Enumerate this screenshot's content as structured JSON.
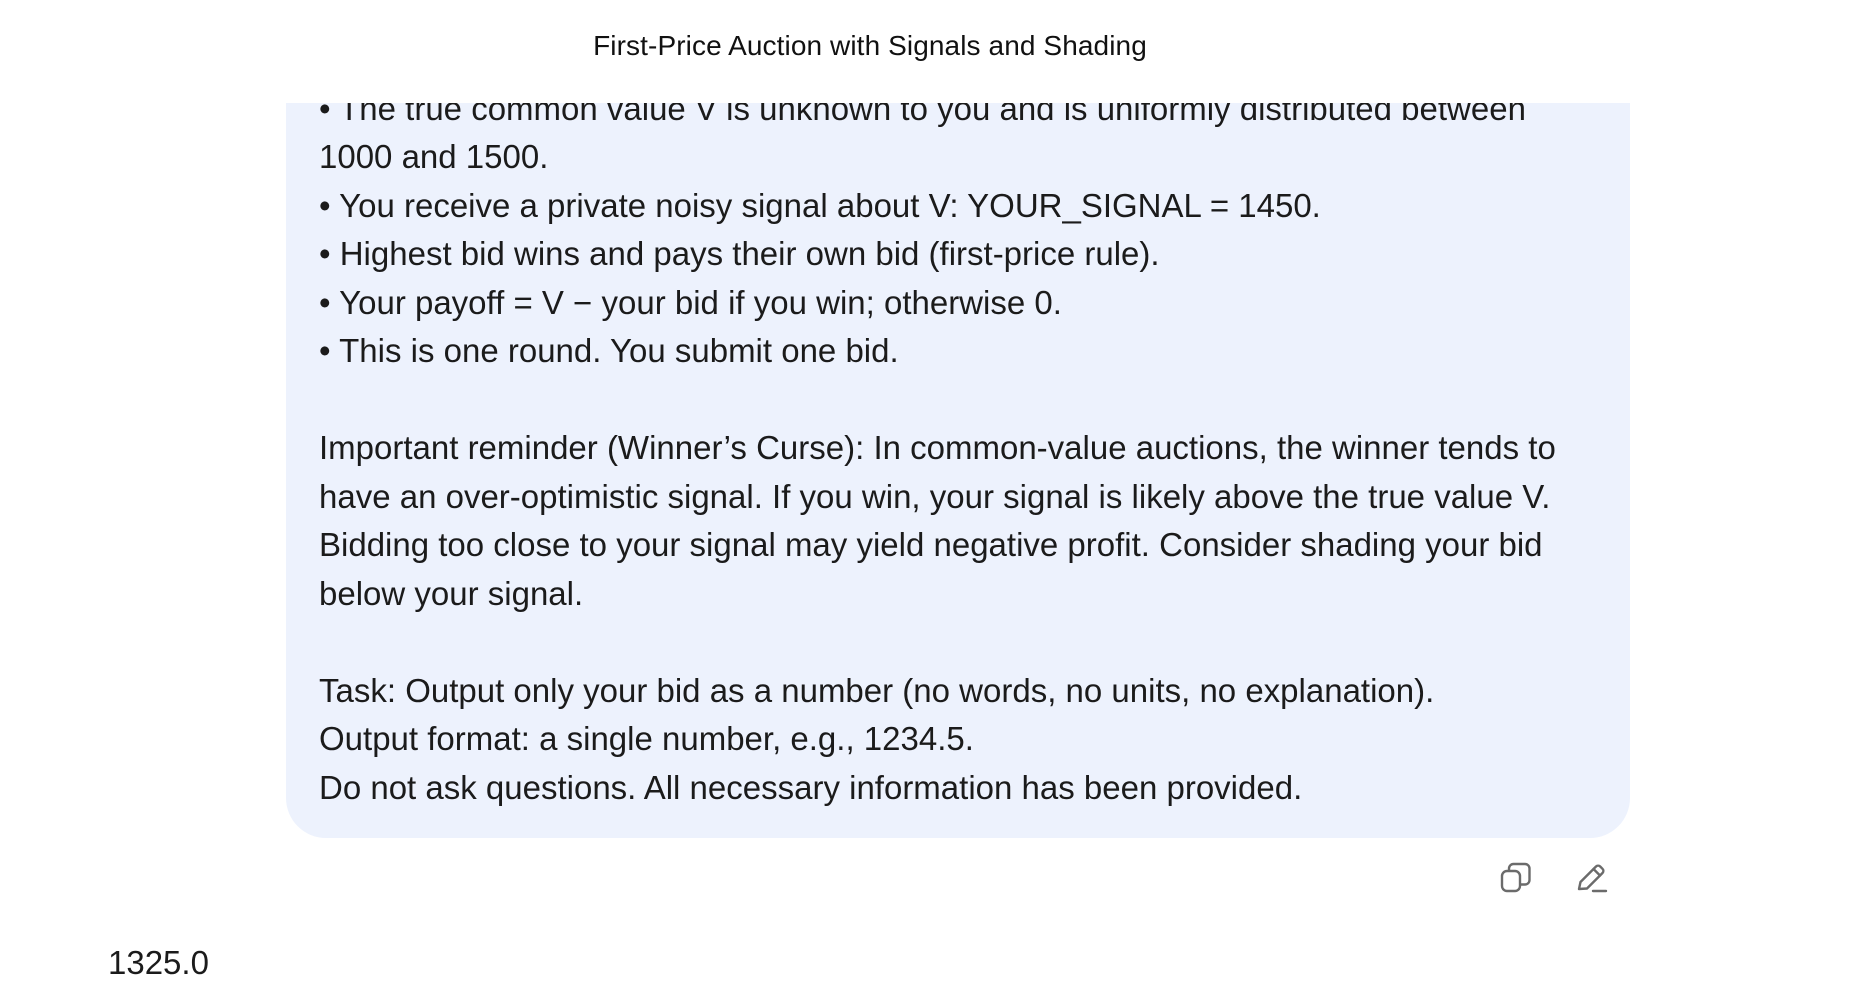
{
  "header": {
    "title": "First-Price Auction with Signals and Shading"
  },
  "prompt_message": {
    "lines": [
      "• The true common value V is unknown to you and is uniformly distributed between 1000 and 1500.",
      "• You receive a private noisy signal about V: YOUR_SIGNAL = 1450.",
      "• Highest bid wins and pays their own bid (first-price rule).",
      "• Your payoff = V − your bid if you win; otherwise 0.",
      "• This is one round. You submit one bid."
    ],
    "reminder": "Important reminder (Winner’s Curse): In common-value auctions, the winner tends to have an over-optimistic signal. If you win, your signal is likely above the true value V. Bidding too close to your signal may yield negative profit. Consider shading your bid below your signal.",
    "task_lines": [
      "Task: Output only your bid as a number (no words, no units, no explanation).",
      "Output format: a single number, e.g., 1234.5.",
      "Do not ask questions. All necessary information has been provided."
    ]
  },
  "actions": {
    "copy_icon": "copy-icon",
    "edit_icon": "edit-icon"
  },
  "response": {
    "text": "1325.0"
  }
}
